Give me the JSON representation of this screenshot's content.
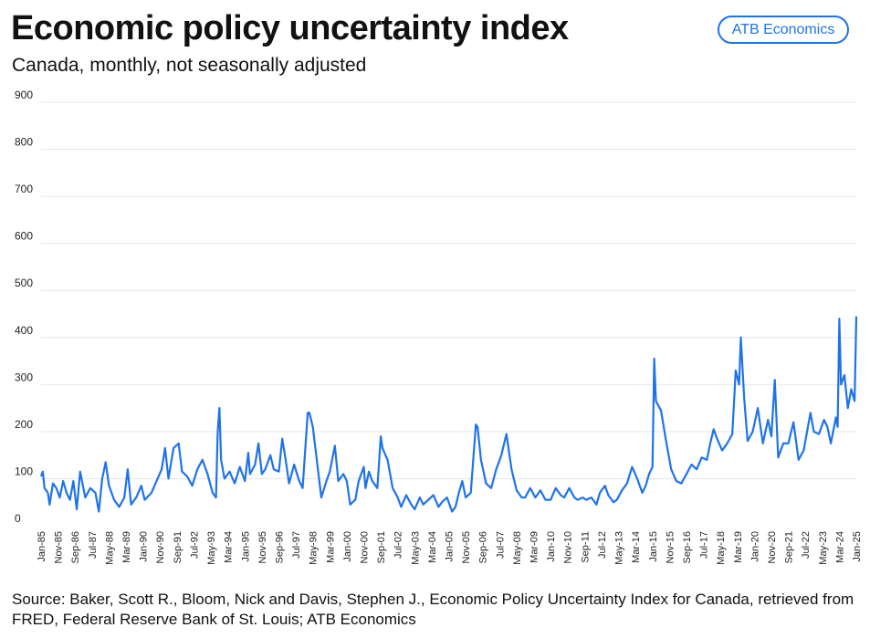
{
  "title": "Economic policy uncertainty index",
  "subtitle": "Canada, monthly, not seasonally adjusted",
  "brand": "ATB Economics",
  "source": "Source: Baker, Scott R., Bloom, Nick and Davis, Stephen J., Economic Policy Uncertainty Index for Canada, retrieved from FRED, Federal Reserve Bank of St. Louis; ATB Economics",
  "colors": {
    "line": "#1f73ea",
    "grid": "#e6e6e6",
    "brand": "#1f73ea"
  },
  "chart_data": {
    "type": "line",
    "title": "Economic policy uncertainty index",
    "subtitle": "Canada, monthly, not seasonally adjusted",
    "xlabel": "",
    "ylabel": "",
    "ylim": [
      0,
      900
    ],
    "yticks": [
      0,
      100,
      200,
      300,
      400,
      500,
      600,
      700,
      800,
      900
    ],
    "grid": true,
    "x_start": "Jan-85",
    "x_end": "Jan-25",
    "frequency": "monthly",
    "xtick_labels": [
      "Jan-85",
      "Nov-85",
      "Sep-86",
      "Jul-87",
      "May-88",
      "Mar-89",
      "Jan-90",
      "Nov-90",
      "Sep-91",
      "Jul-92",
      "May-93",
      "Mar-94",
      "Jan-95",
      "Nov-95",
      "Sep-96",
      "Jul-97",
      "May-98",
      "Mar-99",
      "Jan-00",
      "Nov-00",
      "Sep-01",
      "Jul-02",
      "May-03",
      "Mar-04",
      "Jan-05",
      "Nov-05",
      "Sep-06",
      "Jul-07",
      "May-08",
      "Mar-09",
      "Jan-10",
      "Nov-10",
      "Sep-11",
      "Jul-12",
      "May-13",
      "Mar-14",
      "Jan-15",
      "Nov-15",
      "Sep-16",
      "Jul-17",
      "May-18",
      "Mar-19",
      "Jan-20",
      "Nov-20",
      "Sep-21",
      "Jul-22",
      "May-23",
      "Mar-24",
      "Jan-25"
    ],
    "series": [
      {
        "name": "Economic Policy Uncertainty Index for Canada",
        "anchors": [
          [
            "Jan-85",
            105
          ],
          [
            "Feb-85",
            115
          ],
          [
            "Mar-85",
            80
          ],
          [
            "May-85",
            70
          ],
          [
            "Jun-85",
            45
          ],
          [
            "Aug-85",
            90
          ],
          [
            "Oct-85",
            80
          ],
          [
            "Dec-85",
            60
          ],
          [
            "Feb-86",
            95
          ],
          [
            "Apr-86",
            70
          ],
          [
            "Jun-86",
            55
          ],
          [
            "Aug-86",
            95
          ],
          [
            "Oct-86",
            35
          ],
          [
            "Dec-86",
            115
          ],
          [
            "Mar-87",
            60
          ],
          [
            "Jun-87",
            80
          ],
          [
            "Sep-87",
            70
          ],
          [
            "Nov-87",
            30
          ],
          [
            "Jan-88",
            100
          ],
          [
            "Mar-88",
            135
          ],
          [
            "May-88",
            85
          ],
          [
            "Aug-88",
            55
          ],
          [
            "Nov-88",
            40
          ],
          [
            "Feb-89",
            60
          ],
          [
            "Apr-89",
            120
          ],
          [
            "Jun-89",
            45
          ],
          [
            "Sep-89",
            60
          ],
          [
            "Dec-89",
            85
          ],
          [
            "Feb-90",
            55
          ],
          [
            "Jun-90",
            70
          ],
          [
            "Sep-90",
            95
          ],
          [
            "Dec-90",
            120
          ],
          [
            "Feb-91",
            165
          ],
          [
            "Apr-91",
            100
          ],
          [
            "Jul-91",
            165
          ],
          [
            "Oct-91",
            175
          ],
          [
            "Dec-91",
            115
          ],
          [
            "Mar-92",
            105
          ],
          [
            "Jun-92",
            85
          ],
          [
            "Sep-92",
            120
          ],
          [
            "Dec-92",
            140
          ],
          [
            "Mar-93",
            110
          ],
          [
            "Jun-93",
            70
          ],
          [
            "Aug-93",
            60
          ],
          [
            "Sep-93",
            200
          ],
          [
            "Oct-93",
            250
          ],
          [
            "Nov-93",
            140
          ],
          [
            "Jan-94",
            100
          ],
          [
            "Apr-94",
            115
          ],
          [
            "Jul-94",
            90
          ],
          [
            "Oct-94",
            125
          ],
          [
            "Jan-95",
            95
          ],
          [
            "Mar-95",
            155
          ],
          [
            "Apr-95",
            110
          ],
          [
            "Jul-95",
            130
          ],
          [
            "Sep-95",
            175
          ],
          [
            "Nov-95",
            110
          ],
          [
            "Jan-96",
            120
          ],
          [
            "Apr-96",
            150
          ],
          [
            "Jun-96",
            120
          ],
          [
            "Sep-96",
            115
          ],
          [
            "Nov-96",
            185
          ],
          [
            "Jan-97",
            140
          ],
          [
            "Mar-97",
            90
          ],
          [
            "Jun-97",
            130
          ],
          [
            "Sep-97",
            95
          ],
          [
            "Nov-97",
            80
          ],
          [
            "Feb-98",
            240
          ],
          [
            "Mar-98",
            240
          ],
          [
            "May-98",
            210
          ],
          [
            "Aug-98",
            120
          ],
          [
            "Oct-98",
            60
          ],
          [
            "Jan-99",
            95
          ],
          [
            "Mar-99",
            115
          ],
          [
            "Jun-99",
            170
          ],
          [
            "Aug-99",
            95
          ],
          [
            "Nov-99",
            110
          ],
          [
            "Jan-00",
            95
          ],
          [
            "Mar-00",
            45
          ],
          [
            "Jun-00",
            55
          ],
          [
            "Aug-00",
            95
          ],
          [
            "Nov-00",
            125
          ],
          [
            "Dec-00",
            80
          ],
          [
            "Feb-01",
            115
          ],
          [
            "Apr-01",
            95
          ],
          [
            "Jul-01",
            80
          ],
          [
            "Sep-01",
            190
          ],
          [
            "Oct-01",
            165
          ],
          [
            "Jan-02",
            140
          ],
          [
            "Apr-02",
            80
          ],
          [
            "Jul-02",
            60
          ],
          [
            "Sep-02",
            40
          ],
          [
            "Dec-02",
            65
          ],
          [
            "Mar-03",
            45
          ],
          [
            "May-03",
            35
          ],
          [
            "Aug-03",
            60
          ],
          [
            "Oct-03",
            45
          ],
          [
            "Jan-04",
            55
          ],
          [
            "Apr-04",
            65
          ],
          [
            "Jul-04",
            40
          ],
          [
            "Sep-04",
            50
          ],
          [
            "Dec-04",
            60
          ],
          [
            "Mar-05",
            30
          ],
          [
            "May-05",
            40
          ],
          [
            "Jul-05",
            70
          ],
          [
            "Sep-05",
            95
          ],
          [
            "Nov-05",
            60
          ],
          [
            "Feb-06",
            70
          ],
          [
            "May-06",
            215
          ],
          [
            "Jun-06",
            210
          ],
          [
            "Aug-06",
            140
          ],
          [
            "Nov-06",
            90
          ],
          [
            "Feb-07",
            80
          ],
          [
            "May-07",
            120
          ],
          [
            "Aug-07",
            150
          ],
          [
            "Nov-07",
            195
          ],
          [
            "Feb-08",
            120
          ],
          [
            "May-08",
            75
          ],
          [
            "Aug-08",
            60
          ],
          [
            "Oct-08",
            60
          ],
          [
            "Jan-09",
            80
          ],
          [
            "Apr-09",
            60
          ],
          [
            "Jul-09",
            75
          ],
          [
            "Oct-09",
            55
          ],
          [
            "Jan-10",
            55
          ],
          [
            "Apr-10",
            80
          ],
          [
            "Jul-10",
            65
          ],
          [
            "Sep-10",
            60
          ],
          [
            "Dec-10",
            80
          ],
          [
            "Mar-11",
            60
          ],
          [
            "May-11",
            55
          ],
          [
            "Aug-11",
            60
          ],
          [
            "Oct-11",
            55
          ],
          [
            "Jan-12",
            60
          ],
          [
            "Apr-12",
            45
          ],
          [
            "Jun-12",
            70
          ],
          [
            "Sep-12",
            85
          ],
          [
            "Nov-12",
            65
          ],
          [
            "Feb-13",
            50
          ],
          [
            "Apr-13",
            55
          ],
          [
            "Jul-13",
            75
          ],
          [
            "Oct-13",
            90
          ],
          [
            "Jan-14",
            125
          ],
          [
            "Apr-14",
            100
          ],
          [
            "Jul-14",
            70
          ],
          [
            "Sep-14",
            85
          ],
          [
            "Nov-14",
            110
          ],
          [
            "Jan-15",
            125
          ],
          [
            "Feb-15",
            355
          ],
          [
            "Mar-15",
            265
          ],
          [
            "Jun-15",
            245
          ],
          [
            "Sep-15",
            180
          ],
          [
            "Dec-15",
            120
          ],
          [
            "Mar-16",
            95
          ],
          [
            "Jun-16",
            90
          ],
          [
            "Sep-16",
            110
          ],
          [
            "Dec-16",
            130
          ],
          [
            "Mar-17",
            120
          ],
          [
            "Jun-17",
            145
          ],
          [
            "Sep-17",
            140
          ],
          [
            "Nov-17",
            175
          ],
          [
            "Jan-18",
            205
          ],
          [
            "Mar-18",
            185
          ],
          [
            "Jun-18",
            160
          ],
          [
            "Sep-18",
            175
          ],
          [
            "Dec-18",
            195
          ],
          [
            "Feb-19",
            330
          ],
          [
            "Apr-19",
            300
          ],
          [
            "May-19",
            400
          ],
          [
            "Jul-19",
            270
          ],
          [
            "Sep-19",
            180
          ],
          [
            "Dec-19",
            200
          ],
          [
            "Mar-20",
            250
          ],
          [
            "Jun-20",
            175
          ],
          [
            "Sep-20",
            225
          ],
          [
            "Nov-20",
            190
          ],
          [
            "Jan-21",
            310
          ],
          [
            "Mar-21",
            145
          ],
          [
            "Jun-21",
            175
          ],
          [
            "Sep-21",
            175
          ],
          [
            "Dec-21",
            220
          ],
          [
            "Mar-22",
            140
          ],
          [
            "Jun-22",
            160
          ],
          [
            "Aug-22",
            200
          ],
          [
            "Oct-22",
            240
          ],
          [
            "Dec-22",
            200
          ],
          [
            "Mar-23",
            195
          ],
          [
            "Jun-23",
            225
          ],
          [
            "Aug-23",
            210
          ],
          [
            "Oct-23",
            175
          ],
          [
            "Jan-24",
            230
          ],
          [
            "Feb-24",
            210
          ],
          [
            "Mar-24",
            440
          ],
          [
            "Apr-24",
            300
          ],
          [
            "Jun-24",
            320
          ],
          [
            "Aug-24",
            250
          ],
          [
            "Oct-24",
            290
          ],
          [
            "Dec-24",
            265
          ],
          [
            "Jan-25",
            445
          ]
        ]
      }
    ]
  }
}
